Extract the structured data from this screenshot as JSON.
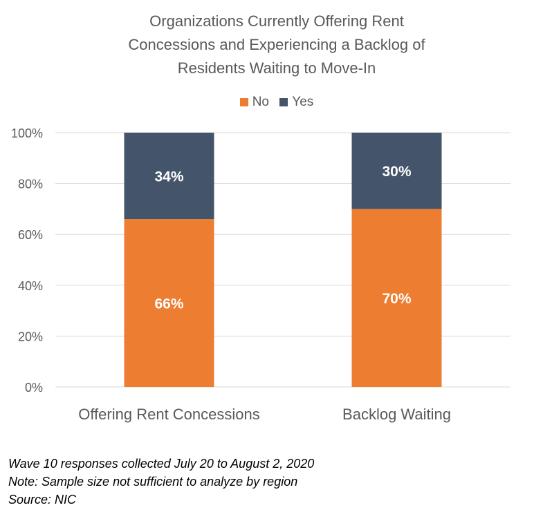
{
  "title_lines": [
    "Organizations Currently Offering Rent",
    "Concessions and Experiencing a Backlog of",
    "Residents Waiting to Move-In"
  ],
  "colors": {
    "No": "#ED7D31",
    "Yes": "#44546A",
    "grid": "#D9D9D9",
    "axis_text": "#595959",
    "bar_label": "#FFFFFF"
  },
  "chart_data": {
    "type": "bar",
    "stacked": true,
    "percent_stacked": true,
    "title": "Organizations Currently Offering Rent Concessions and Experiencing a Backlog of Residents Waiting to Move-In",
    "categories": [
      "Offering Rent Concessions",
      "Backlog Waiting"
    ],
    "series": [
      {
        "name": "No",
        "values": [
          66,
          70
        ],
        "labels": [
          "66%",
          "70%"
        ]
      },
      {
        "name": "Yes",
        "values": [
          34,
          30
        ],
        "labels": [
          "34%",
          "30%"
        ]
      }
    ],
    "ylim": [
      0,
      100
    ],
    "yticks": [
      "0%",
      "20%",
      "40%",
      "60%",
      "80%",
      "100%"
    ],
    "grid": true,
    "legend_position": "top"
  },
  "footnotes": [
    "Wave 10 responses collected July 20 to August 2, 2020",
    "Note: Sample size not sufficient to analyze by region",
    "Source: NIC"
  ]
}
